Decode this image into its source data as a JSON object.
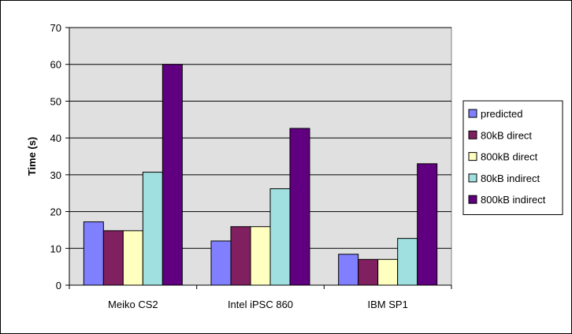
{
  "chart_data": {
    "type": "bar",
    "title": "",
    "xlabel": "",
    "ylabel": "Time (s)",
    "categories": [
      "Meiko CS2",
      "Intel iPSC 860",
      "IBM SP1"
    ],
    "ylim": [
      0,
      70
    ],
    "yticks": [
      0,
      10,
      20,
      30,
      40,
      50,
      60,
      70
    ],
    "grid": true,
    "legend_position": "right",
    "series": [
      {
        "name": "predicted",
        "color": "#8080ff",
        "values": [
          17.2,
          12.0,
          8.4
        ]
      },
      {
        "name": "80kB direct",
        "color": "#802060",
        "values": [
          14.8,
          15.9,
          7.0
        ]
      },
      {
        "name": "800kB direct",
        "color": "#ffffc0",
        "values": [
          14.8,
          15.9,
          7.0
        ]
      },
      {
        "name": "80kB indirect",
        "color": "#a0e0e0",
        "values": [
          30.7,
          26.2,
          12.7
        ]
      },
      {
        "name": "800kB indirect",
        "color": "#600080",
        "values": [
          60.0,
          42.6,
          33.0
        ]
      }
    ],
    "plot_background": "#e0e0e0"
  }
}
